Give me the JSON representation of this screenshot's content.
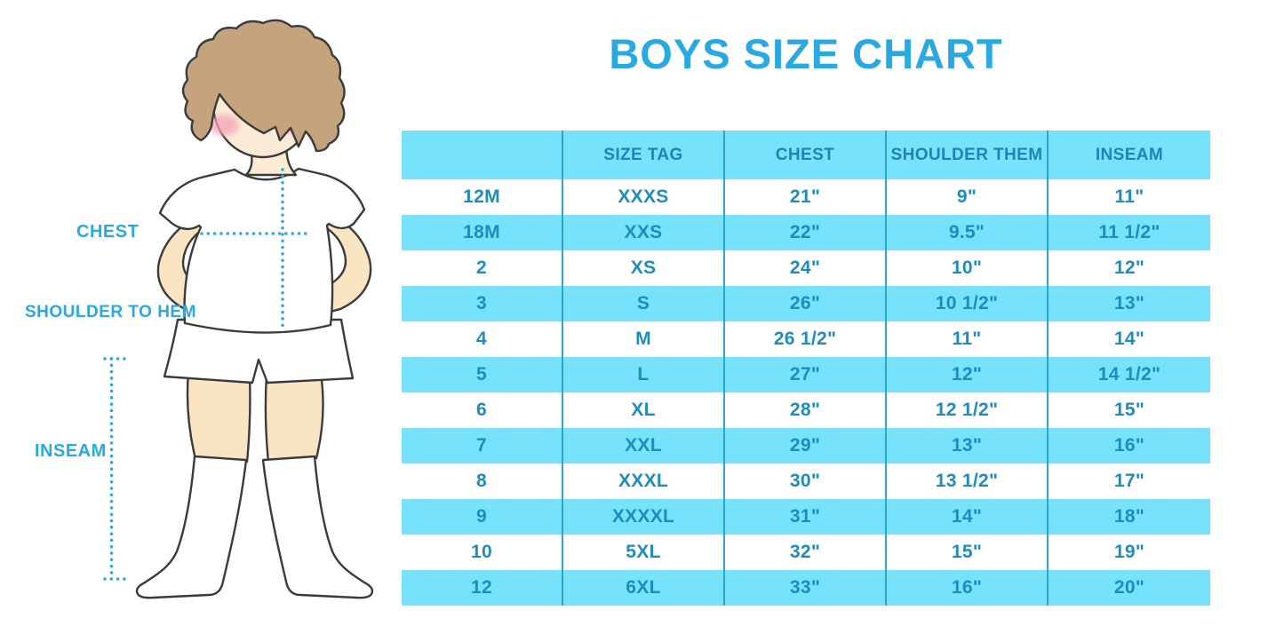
{
  "title": "BOYS SIZE CHART",
  "measure_labels": {
    "chest": "CHEST",
    "shoulder_to_hem": "SHOULDER TO HEM",
    "inseam": "INSEAM"
  },
  "illustration": {
    "alt": "Line illustration of a boy in a white t-shirt, shorts and knee socks with dotted measurement guides"
  },
  "chart_data": {
    "type": "table",
    "title": "BOYS SIZE CHART",
    "columns": [
      "",
      "SIZE TAG",
      "CHEST",
      "SHOULDER THEM",
      "INSEAM"
    ],
    "rows": [
      [
        "12M",
        "XXXS",
        "21\"",
        "9\"",
        "11\""
      ],
      [
        "18M",
        "XXS",
        "22\"",
        "9.5\"",
        "11 1/2\""
      ],
      [
        "2",
        "XS",
        "24\"",
        "10\"",
        "12\""
      ],
      [
        "3",
        "S",
        "26\"",
        "10 1/2\"",
        "13\""
      ],
      [
        "4",
        "M",
        "26 1/2\"",
        "11\"",
        "14\""
      ],
      [
        "5",
        "L",
        "27\"",
        "12\"",
        "14 1/2\""
      ],
      [
        "6",
        "XL",
        "28\"",
        "12 1/2\"",
        "15\""
      ],
      [
        "7",
        "XXL",
        "29\"",
        "13\"",
        "16\""
      ],
      [
        "8",
        "XXXL",
        "30\"",
        "13 1/2\"",
        "17\""
      ],
      [
        "9",
        "XXXXL",
        "31\"",
        "14\"",
        "18\""
      ],
      [
        "10",
        "5XL",
        "32\"",
        "15\"",
        "19\""
      ],
      [
        "12",
        "6XL",
        "33\"",
        "16\"",
        "20\""
      ]
    ],
    "layout": {
      "striped": true,
      "header_row_color": "#76E2FB",
      "stripe_row_color": "#76E2FB",
      "plain_row_color": "#FFFFFF",
      "divider_color": "#2BA6D1",
      "grid": "vertical-dividers-only"
    }
  },
  "colors": {
    "accent_blue": "#29A9E1",
    "table_text_blue": "#1E8CBD",
    "stripe_cyan": "#76E2FB",
    "divider_blue": "#2BA6D1",
    "hair_brown": "#C5A37C",
    "skin": "#FAE5C3",
    "face_skin": "#FCEBD4",
    "blush_pink": "#F2A4B8",
    "outline": "#3B3B3B"
  }
}
